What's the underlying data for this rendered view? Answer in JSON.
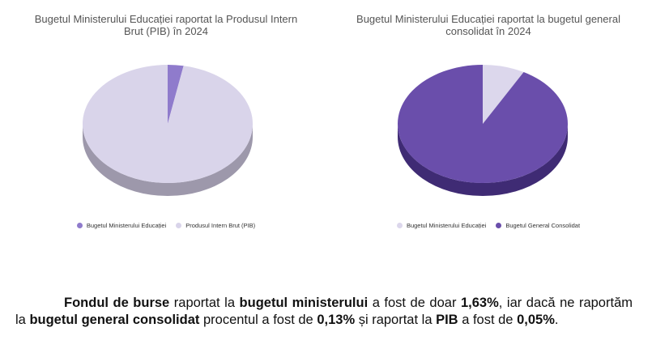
{
  "chart_data": [
    {
      "type": "pie",
      "title_lines": [
        "Bugetul Ministerului Educației raportat la Produsul Intern",
        "Brut (PIB) în 2024"
      ],
      "slices": [
        {
          "name": "Bugetul Ministerului Educației",
          "value": 3.0,
          "color": "#8f7bcc",
          "side": "#6e5aa8"
        },
        {
          "name": "Produsul Intern Brut (PIB)",
          "value": 97.0,
          "color": "#d9d4ea",
          "side": "#9d98ab"
        }
      ],
      "legend": [
        {
          "label": "Bugetul Ministerului Educației",
          "color": "#8f7bcc"
        },
        {
          "label": "Produsul Intern Brut (PIB)",
          "color": "#d9d4ea"
        }
      ],
      "legend_position": "bottom",
      "style": "3d"
    },
    {
      "type": "pie",
      "title_lines": [
        "Bugetul Ministerului Educației raportat la bugetul general",
        "consolidat în 2024"
      ],
      "slices": [
        {
          "name": "Bugetul Ministerului Educației",
          "value": 8.0,
          "color": "#dcd7ec",
          "side": "#a9a4bb"
        },
        {
          "name": "Bugetul General Consolidat",
          "value": 92.0,
          "color": "#6a4eab",
          "side": "#3f2b74"
        }
      ],
      "legend": [
        {
          "label": "Bugetul Ministerului Educației",
          "color": "#dcd7ec"
        },
        {
          "label": "Bugetul General Consolidat",
          "color": "#6a4eab"
        }
      ],
      "legend_position": "bottom",
      "style": "3d"
    }
  ],
  "summary": {
    "t1": "Fondul de burse",
    "t2": " raportat la ",
    "t3": "bugetul ministerului",
    "t4": " a fost de doar ",
    "t5": "1,63%",
    "t6": ", iar dacă ne raportăm la ",
    "t7": "bugetul general consolidat",
    "t8": " procentul a fost de ",
    "t9": "0,13%",
    "t10": " și raportat la ",
    "t11": "PIB",
    "t12": " a fost de ",
    "t13": "0,05%",
    "t14": "."
  }
}
